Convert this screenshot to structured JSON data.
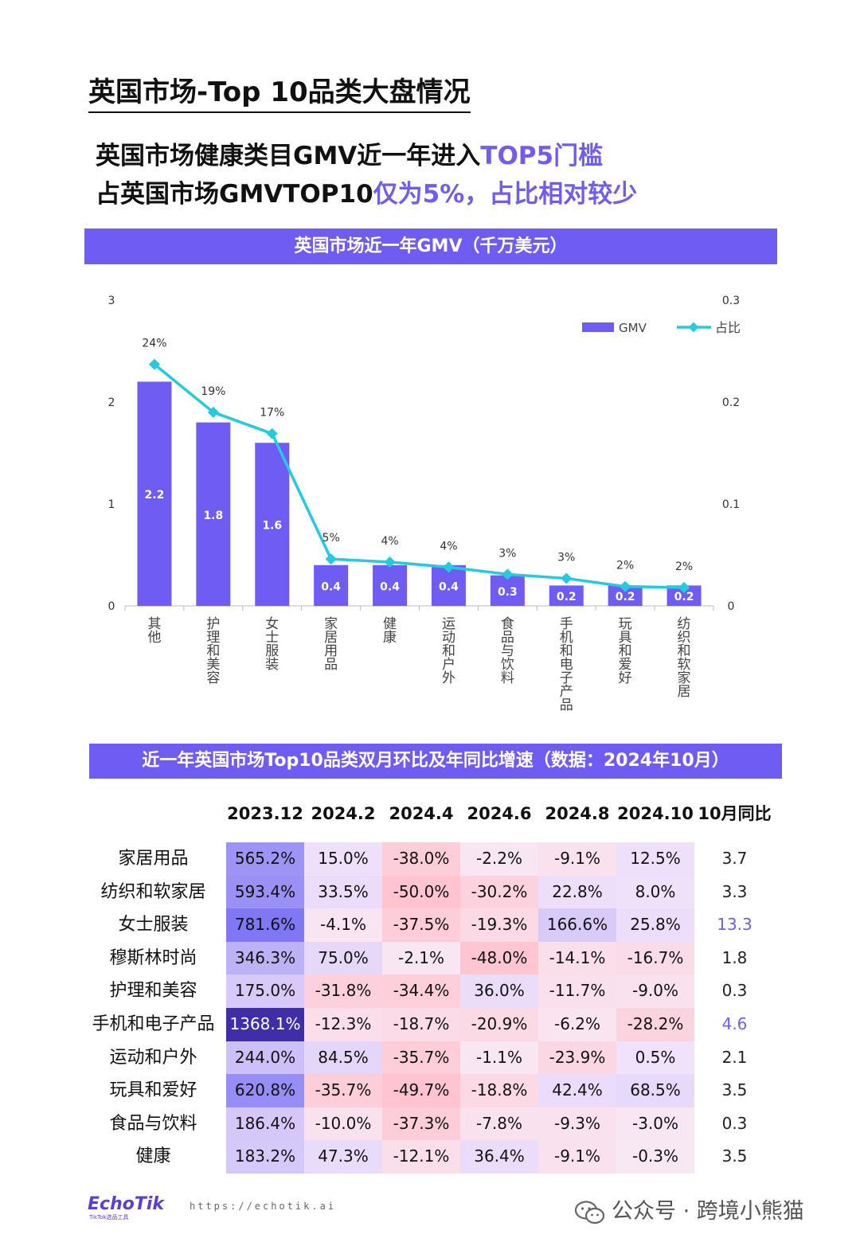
{
  "page_title": "英国市场-Top 10品类大盘情况",
  "headline_1": {
    "part1": "英国市场健康类目GMV近一年进入",
    "part2": "TOP5门槛"
  },
  "headline_2": {
    "part1": "占英国市场GMVTOP10",
    "part2": "仅为5%，占比相对较少"
  },
  "chart_banner": "英国市场近一年GMV（千万美元）",
  "colors": {
    "accent": "#6f5cf2",
    "bar": "#6f5cf2",
    "line": "#27c9dd",
    "banner_text": "#ffffff"
  },
  "chart_data": {
    "type": "bar+line",
    "categories": [
      "其他",
      "护理和美容",
      "女士服装",
      "家居用品",
      "健康",
      "运动和户外",
      "食品与饮料",
      "手机和电子产品",
      "玩具和爱好",
      "纺织和软家居"
    ],
    "series": [
      {
        "name": "GMV",
        "type": "bar",
        "axis": "left",
        "values": [
          2.2,
          1.8,
          1.6,
          0.4,
          0.4,
          0.4,
          0.3,
          0.2,
          0.2,
          0.2
        ],
        "labels": [
          "2.2",
          "1.8",
          "1.6",
          "0.4",
          "0.4",
          "0.4",
          "0.3",
          "0.2",
          "0.2",
          "0.2"
        ]
      },
      {
        "name": "占比",
        "type": "line",
        "axis": "right",
        "values": [
          0.237,
          0.19,
          0.169,
          0.046,
          0.043,
          0.038,
          0.031,
          0.027,
          0.019,
          0.018
        ],
        "labels": [
          "24%",
          "19%",
          "17%",
          "5%",
          "4%",
          "4%",
          "3%",
          "3%",
          "2%",
          "2%"
        ]
      }
    ],
    "y_left": {
      "ticks": [
        "0",
        "1",
        "2",
        "3"
      ],
      "range": [
        0,
        3
      ]
    },
    "y_right": {
      "ticks": [
        "0",
        "0.1",
        "0.2",
        "0.3"
      ],
      "range": [
        0,
        0.3
      ]
    },
    "legend": {
      "placement": "top-right",
      "items": [
        "GMV",
        "占比"
      ]
    }
  },
  "table_banner": "近一年英国市场Top10品类双月环比及年同比增速（数据：2024年10月）",
  "table": {
    "columns": [
      "2023.12",
      "2024.2",
      "2024.4",
      "2024.6",
      "2024.8",
      "2024.10",
      "10月同比"
    ],
    "rows": [
      {
        "label": "家居用品",
        "cells": [
          "565.2%",
          "15.0%",
          "-38.0%",
          "-2.2%",
          "-9.1%",
          "12.5%"
        ],
        "yoy": "3.7"
      },
      {
        "label": "纺织和软家居",
        "cells": [
          "593.4%",
          "33.5%",
          "-50.0%",
          "-30.2%",
          "22.8%",
          "8.0%"
        ],
        "yoy": "3.3"
      },
      {
        "label": "女士服装",
        "cells": [
          "781.6%",
          "-4.1%",
          "-37.5%",
          "-19.3%",
          "166.6%",
          "25.8%"
        ],
        "yoy": "13.3"
      },
      {
        "label": "穆斯林时尚",
        "cells": [
          "346.3%",
          "75.0%",
          "-2.1%",
          "-48.0%",
          "-14.1%",
          "-16.7%"
        ],
        "yoy": "1.8"
      },
      {
        "label": "护理和美容",
        "cells": [
          "175.0%",
          "-31.8%",
          "-34.4%",
          "36.0%",
          "-11.7%",
          "-9.0%"
        ],
        "yoy": "0.3"
      },
      {
        "label": "手机和电子产品",
        "cells": [
          "1368.1%",
          "-12.3%",
          "-18.7%",
          "-20.9%",
          "-6.2%",
          "-28.2%"
        ],
        "yoy": "4.6"
      },
      {
        "label": "运动和户外",
        "cells": [
          "244.0%",
          "84.5%",
          "-35.7%",
          "-1.1%",
          "-23.9%",
          "0.5%"
        ],
        "yoy": "2.1"
      },
      {
        "label": "玩具和爱好",
        "cells": [
          "620.8%",
          "-35.7%",
          "-49.7%",
          "-18.8%",
          "42.4%",
          "68.5%"
        ],
        "yoy": "3.5"
      },
      {
        "label": "食品与饮料",
        "cells": [
          "186.4%",
          "-10.0%",
          "-37.3%",
          "-7.8%",
          "-9.3%",
          "-3.0%"
        ],
        "yoy": "0.3"
      },
      {
        "label": "健康",
        "cells": [
          "183.2%",
          "47.3%",
          "-12.1%",
          "36.4%",
          "-9.1%",
          "-0.3%"
        ],
        "yoy": "3.5"
      }
    ],
    "highlighted_yoy_rows": [
      "女士服装",
      "手机和电子产品"
    ]
  },
  "footer": {
    "logo": "EchoTik",
    "logo_sub": "TikTok选品工具",
    "url": "https://echotik.ai",
    "wechat": "公众号 · 跨境小熊猫",
    "wechat_icon": "wechat-icon"
  }
}
